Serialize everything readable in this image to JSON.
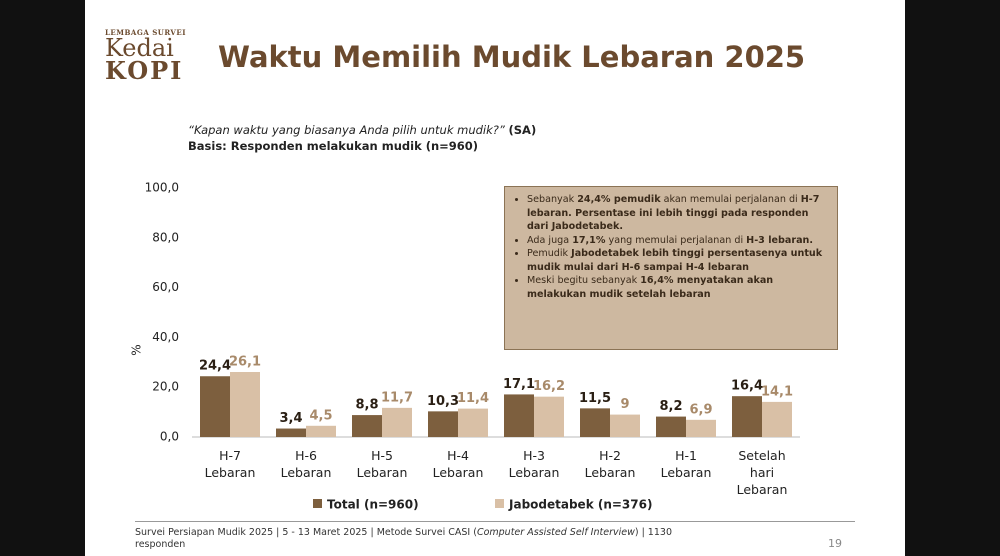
{
  "logo": {
    "tagline": "LEMBAGA SURVEI",
    "name_top": "Kedai",
    "name_bottom": "KOPI"
  },
  "title": "Waktu Memilih Mudik Lebaran 2025",
  "question": "“Kapan waktu yang biasanya Anda pilih untuk mudik?”",
  "question_tag": "(SA)",
  "basis": "Basis: Responden melakukan mudik (n=960)",
  "callout": [
    [
      "Sebanyak ",
      "24,4% pemudik",
      " akan memulai perjalanan di ",
      "H-7 lebaran. Persentase ini lebih tinggi pada responden dari Jabodetabek."
    ],
    [
      "Ada juga ",
      "17,1%",
      " yang memulai perjalanan di ",
      "H-3 lebaran."
    ],
    [
      "Pemudik ",
      "Jabodetabek lebih tinggi persentasenya untuk mudik mulai dari H-6 sampai H-4 lebaran"
    ],
    [
      "Meski begitu sebanyak ",
      "16,4% menyatakan akan melakukan mudik setelah lebaran"
    ]
  ],
  "chart_data": {
    "type": "bar",
    "y_label": "%",
    "categories": [
      "H-7 Lebaran",
      "H-6 Lebaran",
      "H-5 Lebaran",
      "H-4 Lebaran",
      "H-3 Lebaran",
      "H-2 Lebaran",
      "H-1 Lebaran",
      "Setelah hari Lebaran"
    ],
    "series": [
      {
        "name": "Total (n=960)",
        "color": "#7d5f3e",
        "values": [
          24.4,
          3.4,
          8.8,
          10.3,
          17.1,
          11.5,
          8.2,
          16.4
        ],
        "value_labels": [
          "24,4",
          "3,4",
          "8,8",
          "10,3",
          "17,1",
          "11,5",
          "8,2",
          "16,4"
        ]
      },
      {
        "name": "Jabodetabek (n=376)",
        "color": "#d9c0a6",
        "values": [
          26.1,
          4.5,
          11.7,
          11.4,
          16.2,
          9,
          6.9,
          14.1
        ],
        "value_labels": [
          "26,1",
          "4,5",
          "11,7",
          "11,4",
          "16,2",
          "9",
          "6,9",
          "14,1"
        ]
      }
    ],
    "ylim": [
      0,
      100
    ],
    "yticks": [
      {
        "value": 0,
        "label": "0,0"
      },
      {
        "value": 20,
        "label": "20,0"
      },
      {
        "value": 40,
        "label": "40,0"
      },
      {
        "value": 60,
        "label": "60,0"
      },
      {
        "value": 80,
        "label": "80,0"
      },
      {
        "value": 100,
        "label": "100,0"
      }
    ]
  },
  "footer": [
    "Survei Persiapan Mudik 2025 | 5 - 13 Maret 2025 | Metode Survei CASI (",
    "Computer Assisted Self Interview",
    ") | 1130 responden"
  ],
  "page_number": "19"
}
